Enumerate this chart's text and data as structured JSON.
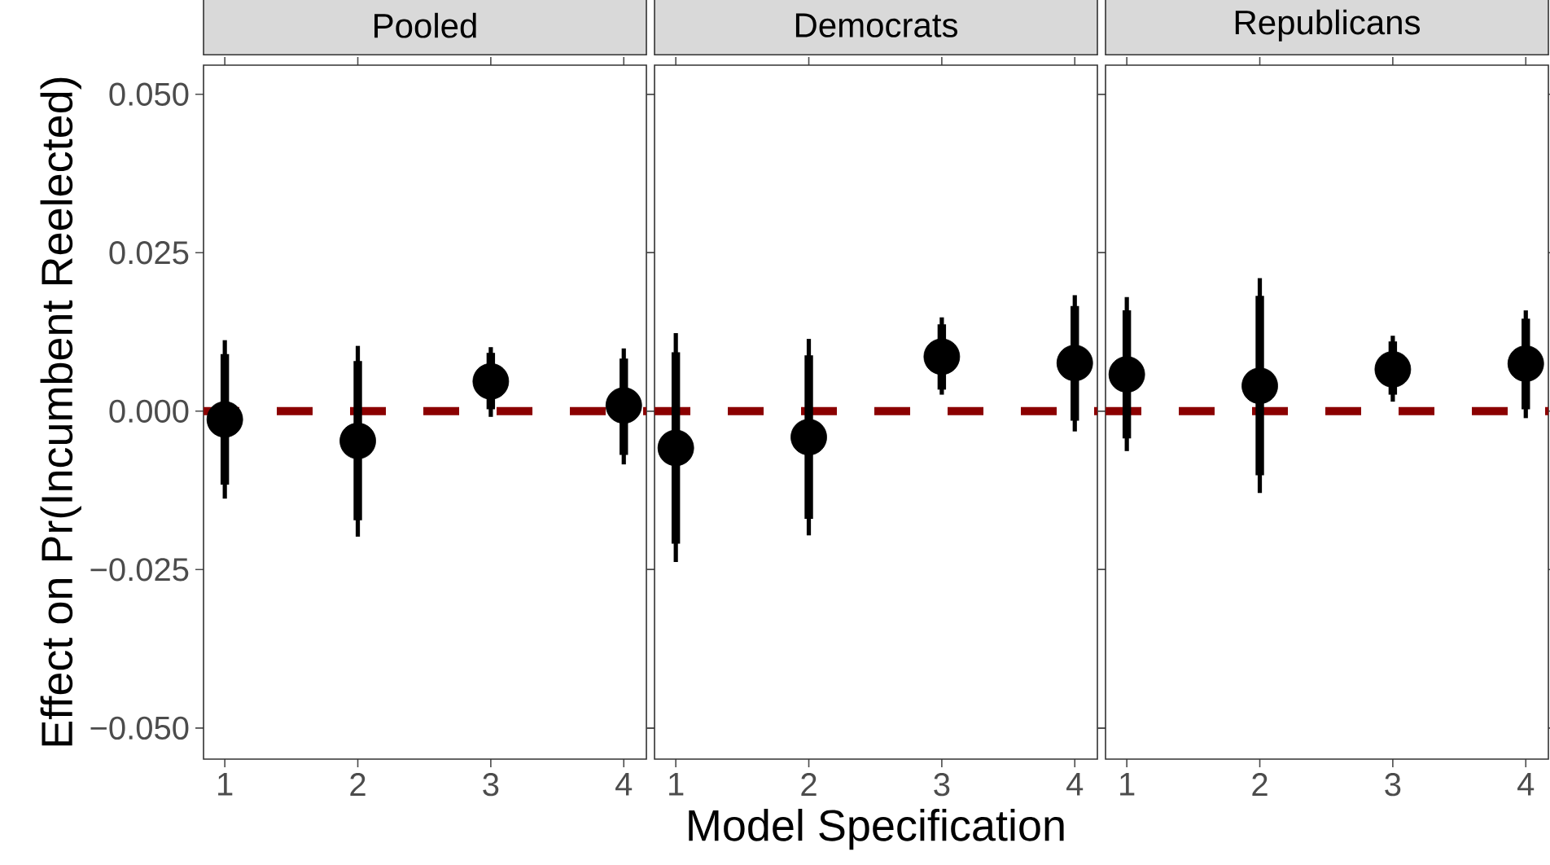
{
  "chart_data": [
    {
      "type": "scatter",
      "title": "Pooled",
      "ylabel": "Effect on Pr(Incumbent Reelected)",
      "x": [
        1,
        2,
        3,
        4
      ],
      "xlim": [
        0.84,
        4.17
      ],
      "xticks": [
        1,
        2,
        3,
        4
      ],
      "ylim": [
        -0.0549,
        0.0546
      ],
      "yticks": [
        {
          "value": -0.05,
          "label": "−0.050"
        },
        {
          "value": -0.025,
          "label": "−0.025"
        },
        {
          "value": 0,
          "label": "0.000"
        },
        {
          "value": 0.025,
          "label": "0.025"
        },
        {
          "value": 0.05,
          "label": "0.050"
        }
      ],
      "grid": false,
      "ref_lines": [
        {
          "axis": "y",
          "value": 0,
          "color": "#8b0000",
          "line_style": "dashed"
        }
      ],
      "series": [
        {
          "color": "#000000",
          "marker": "circle",
          "values": [
            -0.0013,
            -0.0047,
            0.0047,
            0.0009
          ],
          "errors": [
            [
              -0.0138,
              0.0112
            ],
            [
              -0.0198,
              0.0103
            ],
            [
              -0.0009,
              0.0101
            ],
            [
              -0.0084,
              0.0099
            ]
          ]
        },
        {
          "type": "bar",
          "color": "#000000",
          "base": [
            -0.0116,
            -0.0172,
            0.0003,
            -0.0069
          ],
          "values": [
            0.0206,
            0.0251,
            0.0089,
            0.0152
          ]
        }
      ]
    },
    {
      "type": "scatter",
      "title": "Democrats",
      "xlabel": "Model Specification",
      "x": [
        1,
        2,
        3,
        4
      ],
      "xlim": [
        0.84,
        4.17
      ],
      "xticks": [
        1,
        2,
        3,
        4
      ],
      "ylim": [
        -0.0549,
        0.0546
      ],
      "tick_labels": "x",
      "grid": false,
      "ref_lines": [
        {
          "axis": "y",
          "value": 0,
          "color": "#8b0000",
          "line_style": "dashed"
        }
      ],
      "series": [
        {
          "color": "#000000",
          "marker": "circle",
          "values": [
            -0.0058,
            -0.0041,
            0.0086,
            0.0076
          ],
          "errors": [
            [
              -0.0238,
              0.0123
            ],
            [
              -0.0196,
              0.0114
            ],
            [
              0.0026,
              0.0148
            ],
            [
              -0.0032,
              0.0183
            ]
          ]
        },
        {
          "type": "bar",
          "color": "#000000",
          "base": [
            -0.0209,
            -0.017,
            0.0034,
            -0.0015
          ],
          "values": [
            0.0302,
            0.0258,
            0.0103,
            0.0181
          ]
        }
      ]
    },
    {
      "type": "scatter",
      "title": "Republicans",
      "x": [
        1,
        2,
        3,
        4
      ],
      "xlim": [
        0.84,
        4.17
      ],
      "xticks": [
        1,
        2,
        3,
        4
      ],
      "ylim": [
        -0.0549,
        0.0546
      ],
      "tick_labels": "x",
      "grid": false,
      "ref_lines": [
        {
          "axis": "y",
          "value": 0,
          "color": "#8b0000",
          "line_style": "dashed"
        }
      ],
      "series": [
        {
          "color": "#000000",
          "marker": "circle",
          "values": [
            0.0058,
            0.004,
            0.0066,
            0.0075
          ],
          "errors": [
            [
              -0.0063,
              0.018
            ],
            [
              -0.0129,
              0.021
            ],
            [
              0.0015,
              0.0119
            ],
            [
              -0.0011,
              0.0159
            ]
          ]
        },
        {
          "type": "bar",
          "color": "#000000",
          "base": [
            -0.0043,
            -0.0101,
            0.0026,
            0.0003
          ],
          "values": [
            0.0202,
            0.0283,
            0.0084,
            0.0143
          ]
        }
      ]
    }
  ]
}
